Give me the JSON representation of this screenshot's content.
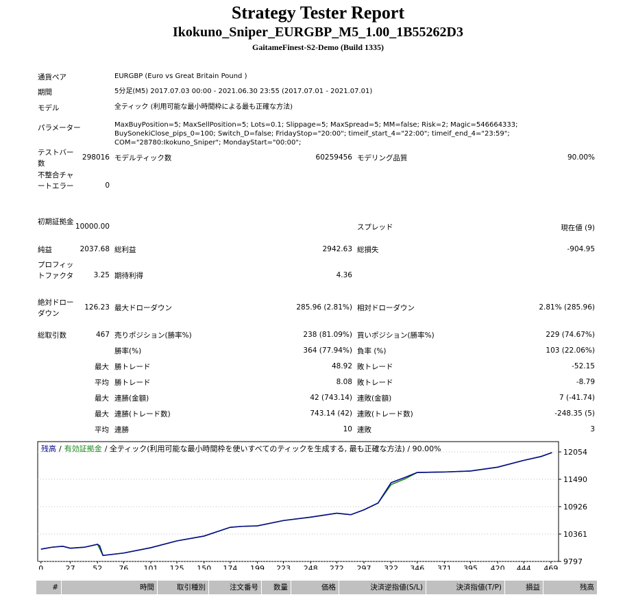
{
  "header": {
    "title": "Strategy Tester Report",
    "subtitle": "Ikokuno_Sniper_EURGBP_M5_1.00_1B55262D3",
    "server": "GaitameFinest-S2-Demo (Build 1335)"
  },
  "settings": [
    {
      "label": "通貨ペア",
      "value": "EURGBP (Euro vs Great Britain Pound )"
    },
    {
      "label": "期間",
      "value": "5分足(M5) 2017.07.03 00:00 - 2021.06.30 23:55 (2017.07.01 - 2021.07.01)"
    },
    {
      "label": "モデル",
      "value": "全ティック (利用可能な最小時間枠による最も正確な方法)"
    },
    {
      "label": "パラメーター",
      "value": "MaxBuyPosition=5; MaxSellPosition=5; Lots=0.1; Slippage=5; MaxSpread=5; MM=false; Risk=2; Magic=546664333; BuySonekiClose_pips_0=100; Switch_D=false; FridayStop=\"20:00\"; timeif_start_4=\"22:00\"; timeif_end_4=\"23:59\"; COM=\"28780:Ikokuno_Sniper\"; MondayStart=\"00:00\";"
    }
  ],
  "stats": [
    [
      {
        "label": "テストバー数",
        "value": "298016"
      },
      {
        "label": "モデルティック数",
        "value": "60259456"
      },
      {
        "label": "モデリング品質",
        "value": "90.00%"
      }
    ],
    [
      {
        "label": "不整合チャートエラー",
        "value": "0"
      },
      null,
      null
    ],
    [
      {
        "label": "初期証拠金",
        "value": "10000.00"
      },
      null,
      {
        "label": "スプレッド",
        "value": "現在値 (9)"
      }
    ],
    [
      {
        "label": "純益",
        "value": "2037.68"
      },
      {
        "label": "総利益",
        "value": "2942.63"
      },
      {
        "label": "総損失",
        "value": "-904.95"
      }
    ],
    [
      {
        "label": "プロフィットファクタ",
        "value": "3.25"
      },
      {
        "label": "期待利得",
        "value": "4.36"
      },
      null
    ],
    [
      {
        "label": "絶対ドローダウン",
        "value": "126.23"
      },
      {
        "label": "最大ドローダウン",
        "value": "285.96 (2.81%)"
      },
      {
        "label": "相対ドローダウン",
        "value": "2.81% (285.96)"
      }
    ],
    [
      {
        "label": "総取引数",
        "value": "467"
      },
      {
        "label": "売りポジション(勝率%)",
        "value": "238 (81.09%)"
      },
      {
        "label": "買いポジション(勝率%)",
        "value": "229 (74.67%)"
      }
    ],
    [
      null,
      {
        "label": "勝率(%)",
        "value": "364 (77.94%)"
      },
      {
        "label": "負率 (%)",
        "value": "103 (22.06%)"
      }
    ]
  ],
  "details": [
    {
      "prefix": "最大",
      "cells": [
        {
          "label": "勝トレード",
          "value": "48.92"
        },
        {
          "label": "敗トレード",
          "value": "-52.15"
        }
      ]
    },
    {
      "prefix": "平均",
      "cells": [
        {
          "label": "勝トレード",
          "value": "8.08"
        },
        {
          "label": "敗トレード",
          "value": "-8.79"
        }
      ]
    },
    {
      "prefix": "最大",
      "cells": [
        {
          "label": "連勝(金額)",
          "value": "42 (743.14)"
        },
        {
          "label": "連敗(金額)",
          "value": "7 (-41.74)"
        }
      ]
    },
    {
      "prefix": "最大",
      "cells": [
        {
          "label": "連勝(トレード数)",
          "value": "743.14 (42)"
        },
        {
          "label": "連敗(トレード数)",
          "value": "-248.35 (5)"
        }
      ]
    },
    {
      "prefix": "平均",
      "cells": [
        {
          "label": "連勝",
          "value": "10"
        },
        {
          "label": "連敗",
          "value": "3"
        }
      ]
    }
  ],
  "chart_data": {
    "type": "line",
    "legend_separator": "/",
    "legend_note": "/ 全ティック(利用可能な最小時間枠を使いすべてのティックを生成する, 最も正確な方法) / 90.00%",
    "x": [
      0,
      10,
      20,
      27,
      40,
      52,
      54,
      57,
      76,
      101,
      125,
      150,
      174,
      185,
      199,
      223,
      248,
      272,
      285,
      297,
      310,
      322,
      335,
      346,
      371,
      395,
      420,
      444,
      460,
      470
    ],
    "series": [
      {
        "name": "残高",
        "color": "#0a0a8c",
        "values": [
          10050,
          10090,
          10110,
          10070,
          10090,
          10150,
          10120,
          9920,
          9970,
          10080,
          10220,
          10320,
          10500,
          10520,
          10530,
          10640,
          10710,
          10790,
          10760,
          10860,
          11000,
          11420,
          11530,
          11630,
          11640,
          11660,
          11740,
          11880,
          11960,
          12040
        ]
      },
      {
        "name": "有効証拠金",
        "color": "#1b8a1b",
        "values": [
          10050,
          10090,
          10110,
          10070,
          10090,
          10150,
          10060,
          9920,
          9970,
          10080,
          10220,
          10320,
          10500,
          10520,
          10530,
          10640,
          10710,
          10790,
          10760,
          10860,
          11000,
          11380,
          11500,
          11630,
          11640,
          11660,
          11740,
          11880,
          11960,
          12040
        ]
      }
    ],
    "xlim": [
      -3,
      476
    ],
    "ylim": [
      9797,
      12266
    ],
    "xticks": [
      0,
      27,
      52,
      76,
      101,
      125,
      150,
      174,
      199,
      223,
      248,
      272,
      297,
      322,
      346,
      371,
      395,
      420,
      444,
      469
    ],
    "yticks": [
      12054,
      11490,
      10926,
      10361,
      9797
    ],
    "grid": true
  },
  "trades_table": {
    "columns": [
      "#",
      "時間",
      "取引種別",
      "注文番号",
      "数量",
      "価格",
      "決済逆指値(S/L)",
      "決済指値(T/P)",
      "損益",
      "残高"
    ]
  }
}
